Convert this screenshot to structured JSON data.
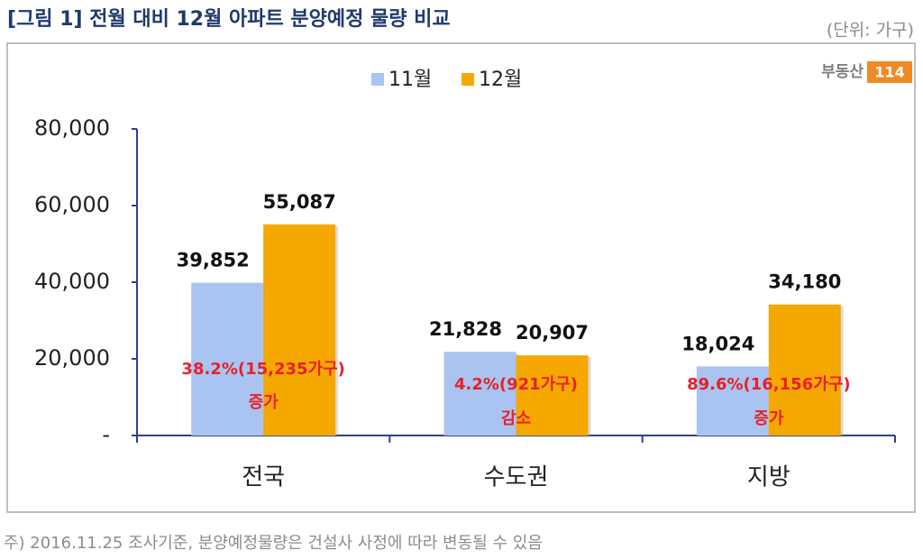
{
  "chart_data": {
    "type": "bar",
    "title": "[그림 1] 전월 대비 12월 아파트 분양예정 물량 비교",
    "unit": "(단위: 가구)",
    "logo": {
      "text": "부동산",
      "badge": "114"
    },
    "note": "주) 2016.11.25 조사기준, 분양예정물량은 건설사 사정에 따라 변동될 수 있음",
    "categories": [
      "전국",
      "수도권",
      "지방"
    ],
    "series": [
      {
        "name": "11월",
        "color": "#a9c4f0",
        "values": [
          39852,
          21828,
          18024
        ],
        "value_labels": [
          "39,852",
          "21,828",
          "18,024"
        ]
      },
      {
        "name": "12월",
        "color": "#f5a800",
        "values": [
          55087,
          20907,
          34180
        ],
        "value_labels": [
          "55,087",
          "20,907",
          "34,180"
        ]
      }
    ],
    "annotations": [
      [
        "38.2%(15,235가구)",
        "증가"
      ],
      [
        "4.2%(921가구)",
        "감소"
      ],
      [
        "89.6%(16,156가구)",
        "증가"
      ]
    ],
    "ylim": [
      0,
      80000
    ],
    "yticks": [
      {
        "value": 0,
        "label": "-"
      },
      {
        "value": 20000,
        "label": "20,000"
      },
      {
        "value": 40000,
        "label": "40,000"
      },
      {
        "value": 60000,
        "label": "60,000"
      },
      {
        "value": 80000,
        "label": "80,000"
      }
    ],
    "legend": "top"
  }
}
